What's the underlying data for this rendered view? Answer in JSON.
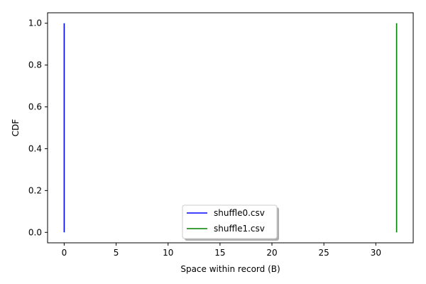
{
  "chart_data": {
    "type": "line",
    "title": "",
    "xlabel": "Space within record (B)",
    "ylabel": "CDF",
    "xlim": [
      -1.6,
      33.6
    ],
    "ylim": [
      -0.05,
      1.05
    ],
    "xticks": [
      0,
      5,
      10,
      15,
      20,
      25,
      30
    ],
    "yticks": [
      0.0,
      0.2,
      0.4,
      0.6,
      0.8,
      1.0
    ],
    "ytick_labels": [
      "0.0",
      "0.2",
      "0.4",
      "0.6",
      "0.8",
      "1.0"
    ],
    "grid": false,
    "legend_position": "bottom-center",
    "series": [
      {
        "name": "shuffle0.csv",
        "color": "#0000ff",
        "x": [
          0,
          0
        ],
        "y": [
          0.0,
          1.0
        ]
      },
      {
        "name": "shuffle1.csv",
        "color": "#008000",
        "x": [
          32,
          32
        ],
        "y": [
          0.0,
          1.0
        ]
      }
    ]
  }
}
